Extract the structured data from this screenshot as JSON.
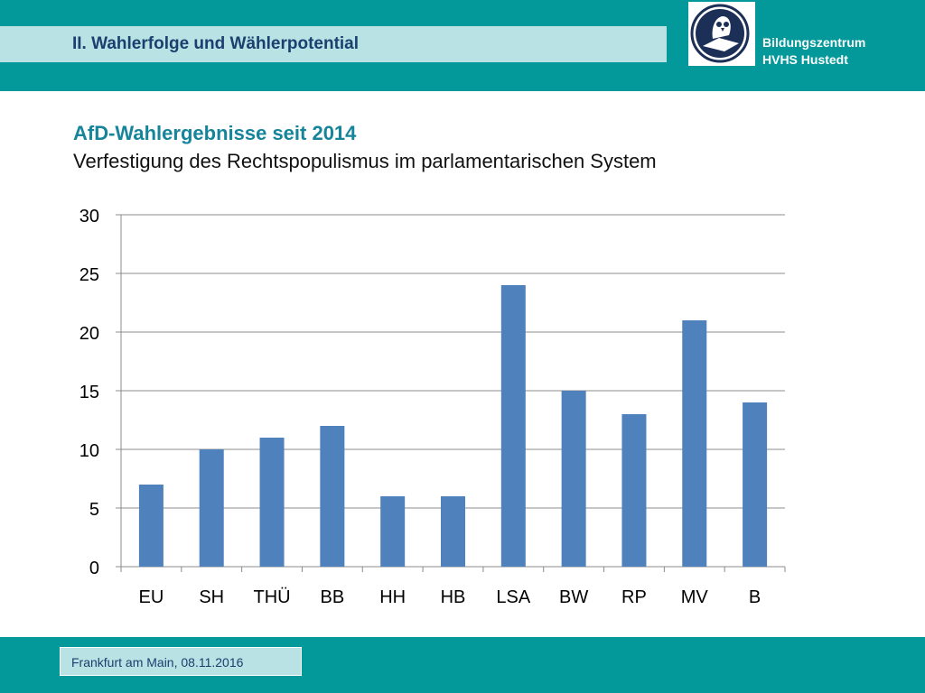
{
  "header": {
    "section_title": "II. Wahlerfolge und Wählerpotential",
    "brand_line1": "Bildungszentrum",
    "brand_line2": "HVHS Hustedt",
    "logo_icon": "owl-emblem-icon"
  },
  "slide": {
    "heading": "AfD-Wahlergebnisse seit 2014",
    "subheading": "Verfestigung des Rechtspopulismus im parlamentarischen System"
  },
  "chart_data": {
    "type": "bar",
    "title": "",
    "xlabel": "",
    "ylabel": "",
    "categories": [
      "EU",
      "SH",
      "THÜ",
      "BB",
      "HH",
      "HB",
      "LSA",
      "BW",
      "RP",
      "MV",
      "B"
    ],
    "values": [
      7,
      10,
      11,
      12,
      6,
      6,
      24,
      15,
      13,
      21,
      14
    ],
    "ylim": [
      0,
      30
    ],
    "yticks": [
      0,
      5,
      10,
      15,
      20,
      25,
      30
    ],
    "grid": true,
    "legend": "none",
    "bar_color": "#4f81bd"
  },
  "footer": {
    "text": "Frankfurt am Main, 08.11.2016"
  },
  "colors": {
    "teal": "#03989a",
    "light_teal": "#b8e2e3",
    "heading": "#16849a",
    "navy": "#1b3f6e"
  }
}
